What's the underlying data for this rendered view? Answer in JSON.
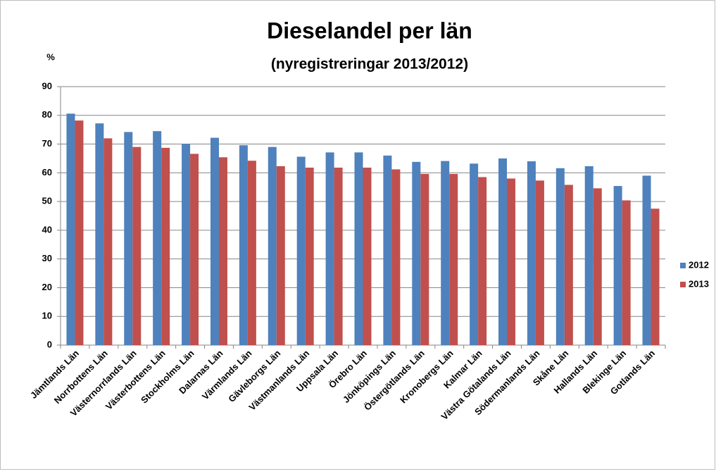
{
  "chart_data": {
    "type": "bar",
    "title": "Dieselandel per län",
    "subtitle": "(nyregistreringar 2013/2012)",
    "y_label": "%",
    "categories": [
      "Jämtlands Län",
      "Norrbottens Län",
      "Västernorrlands Län",
      "Västerbottens Län",
      "Stockholms Län",
      "Dalarnas Län",
      "Värmlands Län",
      "Gävleborgs Län",
      "Västmanlands Län",
      "Uppsala Län",
      "Örebro Län",
      "Jönköpings Län",
      "Östergötlands Län",
      "Kronobergs Län",
      "Kalmar Län",
      "Västra Götalands Län",
      "Södermanlands Län",
      "Skåne Län",
      "Hallands Län",
      "Blekinge Län",
      "Gotlands Län"
    ],
    "series": [
      {
        "name": "2012",
        "color": "#4f81bd",
        "values": [
          80.6,
          77.2,
          74.2,
          74.5,
          70.1,
          72.2,
          69.6,
          69.0,
          65.6,
          67.1,
          67.1,
          66.0,
          63.8,
          64.1,
          63.2,
          65.0,
          64.0,
          61.6,
          62.3,
          55.4,
          59.0
        ]
      },
      {
        "name": "2013",
        "color": "#c0504d",
        "values": [
          78.2,
          72.0,
          69.0,
          68.7,
          66.6,
          65.4,
          64.2,
          62.3,
          61.8,
          61.8,
          61.8,
          61.2,
          59.6,
          59.6,
          58.5,
          58.0,
          57.3,
          55.8,
          54.6,
          50.4,
          47.5
        ]
      }
    ],
    "ylim": [
      0,
      90
    ],
    "yticks": [
      0,
      10,
      20,
      30,
      40,
      50,
      60,
      70,
      80,
      90
    ],
    "grid": true,
    "legend": "right"
  }
}
